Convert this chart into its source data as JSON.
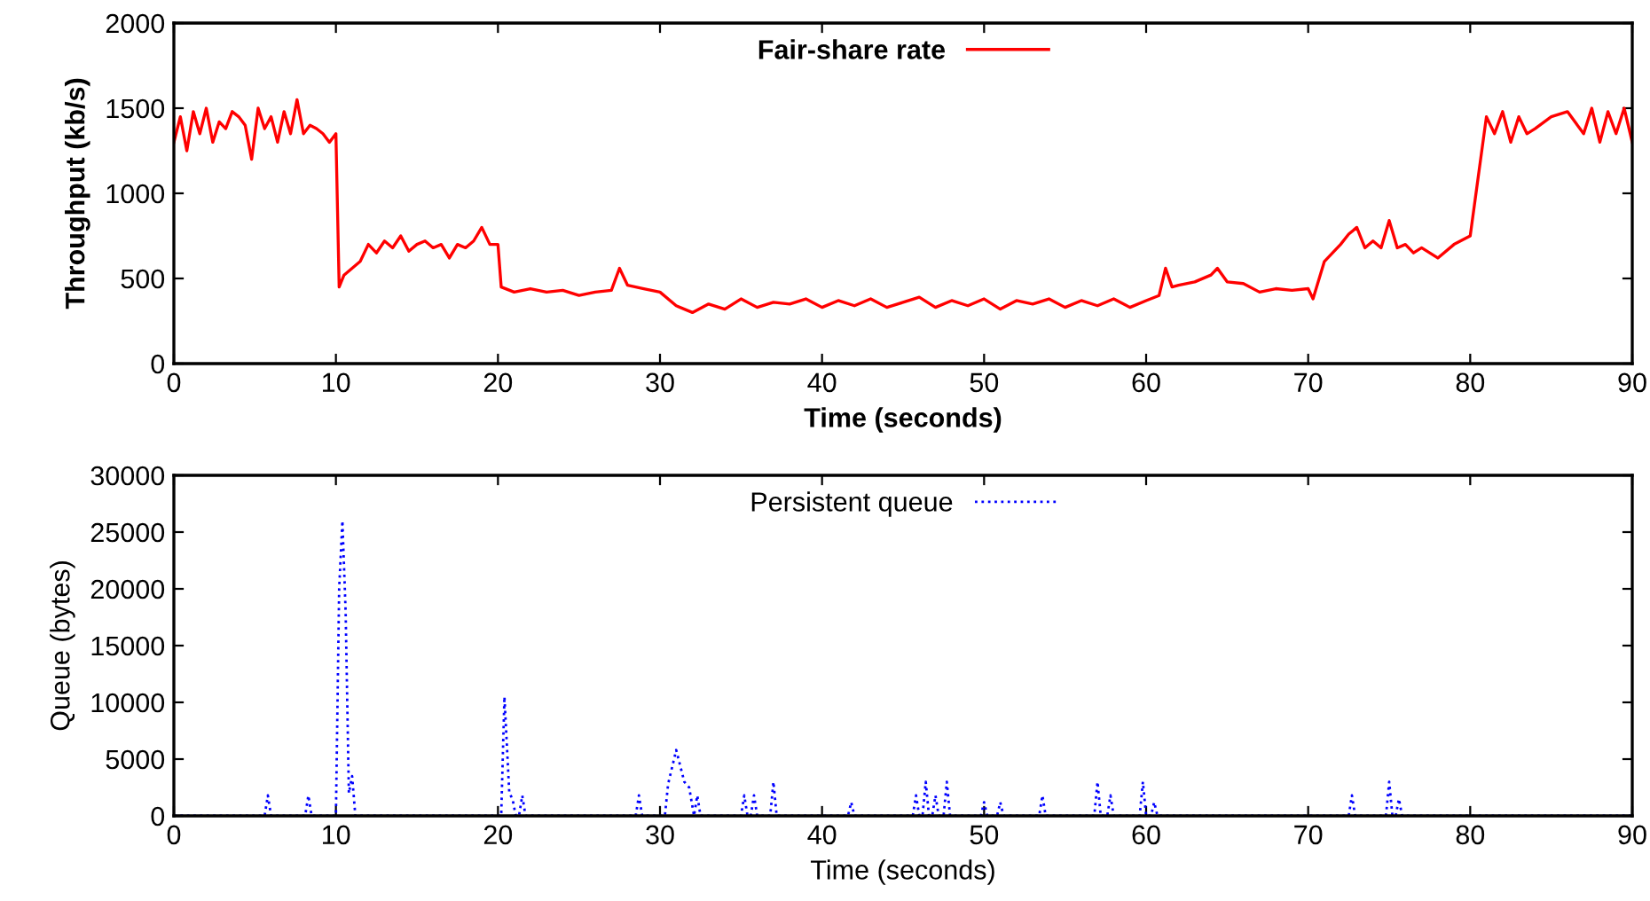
{
  "chart_data": [
    {
      "type": "line",
      "xlabel": "Time (seconds)",
      "ylabel": "Throughput (kb/s)",
      "xlim": [
        0,
        90
      ],
      "ylim": [
        0,
        2000
      ],
      "xticks": [
        0,
        10,
        20,
        30,
        40,
        50,
        60,
        70,
        80,
        90
      ],
      "yticks": [
        0,
        500,
        1000,
        1500,
        2000
      ],
      "grid": false,
      "legend": "top",
      "line_style": "solid",
      "marker": "none",
      "series": [
        {
          "name": "Fair-share rate",
          "color": "#ff0000",
          "x": [
            0,
            0.4,
            0.8,
            1.2,
            1.6,
            2.0,
            2.4,
            2.8,
            3.2,
            3.6,
            4.0,
            4.4,
            4.8,
            5.2,
            5.6,
            6.0,
            6.4,
            6.8,
            7.2,
            7.6,
            8.0,
            8.4,
            8.8,
            9.2,
            9.6,
            10.0,
            10.2,
            10.5,
            11,
            11.5,
            12,
            12.5,
            13,
            13.5,
            14,
            14.5,
            15,
            15.5,
            16,
            16.5,
            17,
            17.5,
            18,
            18.5,
            19,
            19.5,
            20,
            20.2,
            21,
            22,
            23,
            24,
            25,
            26,
            27,
            27.5,
            28,
            29,
            30,
            31,
            32,
            33,
            34,
            35,
            36,
            37,
            38,
            39,
            40,
            41,
            42,
            43,
            44,
            45,
            46,
            47,
            48,
            49,
            50,
            51,
            52,
            53,
            54,
            55,
            56,
            57,
            58,
            59,
            60,
            60.8,
            61.2,
            61.6,
            62,
            63,
            64,
            64.4,
            65,
            66,
            67,
            68,
            69,
            70,
            70.3,
            71,
            72,
            72.5,
            73,
            73.5,
            74,
            74.5,
            75,
            75.5,
            76,
            76.5,
            77,
            78,
            79,
            80,
            80.5,
            81,
            81.5,
            82,
            82.5,
            83,
            83.5,
            84,
            85,
            86,
            87,
            87.5,
            88,
            88.5,
            89,
            89.5,
            90
          ],
          "values": [
            1300,
            1450,
            1250,
            1480,
            1350,
            1500,
            1300,
            1420,
            1380,
            1480,
            1450,
            1400,
            1200,
            1500,
            1380,
            1450,
            1300,
            1480,
            1350,
            1550,
            1350,
            1400,
            1380,
            1350,
            1300,
            1350,
            450,
            520,
            560,
            600,
            700,
            650,
            720,
            680,
            750,
            660,
            700,
            720,
            680,
            700,
            620,
            700,
            680,
            720,
            800,
            700,
            700,
            450,
            420,
            440,
            420,
            430,
            400,
            420,
            430,
            560,
            460,
            440,
            420,
            340,
            300,
            350,
            320,
            380,
            330,
            360,
            350,
            380,
            330,
            370,
            340,
            380,
            330,
            360,
            390,
            330,
            370,
            340,
            380,
            320,
            370,
            350,
            380,
            330,
            370,
            340,
            380,
            330,
            370,
            400,
            560,
            450,
            460,
            480,
            520,
            560,
            480,
            470,
            420,
            440,
            430,
            440,
            380,
            600,
            700,
            760,
            800,
            680,
            720,
            680,
            840,
            680,
            700,
            650,
            680,
            620,
            700,
            750,
            1100,
            1450,
            1350,
            1480,
            1300,
            1450,
            1350,
            1380,
            1450,
            1480,
            1350,
            1500,
            1300,
            1480,
            1350,
            1500,
            1300
          ]
        }
      ]
    },
    {
      "type": "line",
      "xlabel": "Time (seconds)",
      "ylabel": "Queue (bytes)",
      "xlim": [
        0,
        90
      ],
      "ylim": [
        0,
        30000
      ],
      "xticks": [
        0,
        10,
        20,
        30,
        40,
        50,
        60,
        70,
        80,
        90
      ],
      "yticks": [
        0,
        5000,
        10000,
        15000,
        20000,
        25000,
        30000
      ],
      "grid": false,
      "legend": "top",
      "line_style": "dotted",
      "marker": "none",
      "series": [
        {
          "name": "Persistent queue",
          "color": "#0000ff",
          "x": [
            0,
            5.6,
            5.8,
            6.0,
            8.1,
            8.3,
            8.5,
            10.0,
            10.2,
            10.4,
            10.6,
            10.8,
            11.0,
            11.2,
            20.2,
            20.4,
            20.7,
            20.9,
            21.1,
            21.3,
            21.5,
            21.7,
            28.5,
            28.7,
            28.9,
            30.3,
            30.5,
            31.0,
            31.5,
            31.8,
            32.1,
            32.3,
            32.5,
            35.0,
            35.2,
            35.4,
            35.6,
            35.8,
            36.0,
            36.8,
            37.0,
            37.2,
            41.6,
            41.8,
            42.0,
            45.6,
            45.8,
            46.0,
            46.2,
            46.4,
            46.6,
            46.8,
            47.0,
            47.2,
            47.5,
            47.7,
            47.9,
            49.8,
            50.0,
            50.2,
            50.8,
            51.0,
            51.2,
            53.4,
            53.6,
            53.8,
            56.8,
            57.0,
            57.2,
            57.6,
            57.8,
            58.0,
            59.6,
            59.8,
            60.0,
            60.3,
            60.5,
            60.7,
            72.5,
            72.7,
            72.9,
            74.8,
            75.0,
            75.2,
            75.4,
            75.6,
            75.8,
            90
          ],
          "values": [
            0,
            0,
            1800,
            0,
            0,
            1800,
            0,
            0,
            20000,
            26000,
            18000,
            2000,
            3500,
            0,
            0,
            10500,
            2000,
            1500,
            0,
            0,
            1800,
            0,
            0,
            1800,
            0,
            0,
            2800,
            5800,
            3000,
            2500,
            0,
            1800,
            0,
            0,
            1800,
            0,
            0,
            1800,
            0,
            0,
            3000,
            0,
            0,
            1200,
            0,
            0,
            1800,
            0,
            0,
            3000,
            0,
            0,
            1800,
            0,
            0,
            3000,
            0,
            0,
            1200,
            0,
            0,
            1200,
            0,
            0,
            1800,
            0,
            0,
            3000,
            0,
            0,
            1800,
            0,
            0,
            3000,
            0,
            0,
            1200,
            0,
            0,
            1800,
            0,
            0,
            3000,
            0,
            0,
            1500,
            0,
            0
          ]
        }
      ]
    }
  ]
}
